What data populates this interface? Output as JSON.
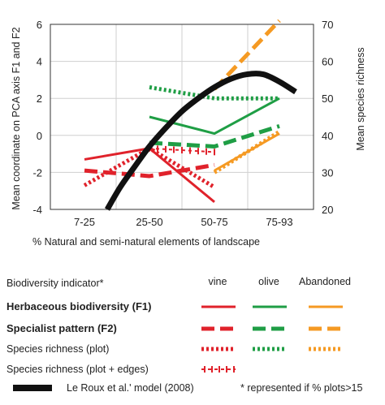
{
  "chart_data": {
    "type": "line",
    "categories": [
      "7-25",
      "25-50",
      "50-75",
      "75-93"
    ],
    "xlabel": "% Natural and semi-natural elements of landscape",
    "ylabel_left": "Mean coordinate on PCA axis F1 and F2",
    "ylabel_right": "Mean species richness",
    "ylim_left": [
      -4,
      6
    ],
    "ylim_right": [
      20,
      70
    ],
    "yticks_left": [
      "-4",
      "-2",
      "0",
      "2",
      "4",
      "6"
    ],
    "yticks_right": [
      "20",
      "30",
      "40",
      "50",
      "60",
      "70"
    ],
    "grid": true,
    "colors": {
      "vine": "#e0222b",
      "olive": "#1f9e45",
      "abandoned": "#f59a23",
      "model": "#111111"
    },
    "series": [
      {
        "name": "vine F1",
        "axis": "left",
        "style": "solid",
        "color": "vine",
        "x": [
          "7-25",
          "25-50",
          "50-75"
        ],
        "y": [
          -1.3,
          -0.7,
          -3.6
        ]
      },
      {
        "name": "vine F2",
        "axis": "left",
        "style": "dash",
        "color": "vine",
        "x": [
          "7-25",
          "25-50",
          "50-75"
        ],
        "y": [
          -1.9,
          -2.2,
          -1.6
        ]
      },
      {
        "name": "vine richness plot",
        "axis": "right",
        "style": "dot",
        "color": "vine",
        "x": [
          "7-25",
          "25-50",
          "50-75"
        ],
        "y": [
          26.5,
          36.5,
          26
        ]
      },
      {
        "name": "vine richness plot+edges",
        "axis": "right",
        "style": "cross",
        "color": "vine",
        "x": [
          "25-50",
          "50-75"
        ],
        "y": [
          36.5,
          35.5
        ]
      },
      {
        "name": "olive F1",
        "axis": "left",
        "style": "solid",
        "color": "olive",
        "x": [
          "25-50",
          "50-75",
          "75-93"
        ],
        "y": [
          1.0,
          0.1,
          2.0
        ]
      },
      {
        "name": "olive F2",
        "axis": "left",
        "style": "dash",
        "color": "olive",
        "x": [
          "25-50",
          "50-75",
          "75-93"
        ],
        "y": [
          -0.4,
          -0.6,
          0.5
        ]
      },
      {
        "name": "olive richness plot",
        "axis": "right",
        "style": "dot",
        "color": "olive",
        "x": [
          "25-50",
          "50-75",
          "75-93"
        ],
        "y": [
          53,
          50,
          50
        ]
      },
      {
        "name": "abandoned F1",
        "axis": "left",
        "style": "solid",
        "color": "abandoned",
        "x": [
          "50-75",
          "75-93"
        ],
        "y": [
          -1.9,
          0.1
        ]
      },
      {
        "name": "abandoned F2",
        "axis": "left",
        "style": "dash",
        "color": "abandoned",
        "x": [
          "50-75",
          "75-93"
        ],
        "y": [
          2.5,
          6.2
        ]
      },
      {
        "name": "abandoned richness plot",
        "axis": "right",
        "style": "dot",
        "color": "abandoned",
        "x": [
          "50-75",
          "75-93"
        ],
        "y": [
          30,
          41
        ]
      },
      {
        "name": "Le Roux et al. model",
        "axis": "left",
        "style": "thick",
        "color": "model",
        "curve": true,
        "x": [
          0.35,
          0.55,
          0.75,
          1.0,
          1.25,
          1.5,
          1.75,
          2.0,
          2.25,
          2.5,
          2.75,
          3.0,
          3.25
        ],
        "y": [
          -4.0,
          -2.8,
          -1.8,
          -0.6,
          0.4,
          1.3,
          2.0,
          2.6,
          3.05,
          3.3,
          3.3,
          2.9,
          2.35
        ]
      }
    ]
  },
  "legend": {
    "header": {
      "indicator": "Biodiversity indicator*",
      "vine": "vine",
      "olive": "olive",
      "abandoned": "Abandoned"
    },
    "rows": [
      {
        "label": "Herbaceous biodiversity (F1)",
        "style": "solid",
        "bold": true,
        "colors": [
          "vine",
          "olive",
          "abandoned"
        ]
      },
      {
        "label": "Specialist pattern (F2)",
        "style": "dash",
        "bold": true,
        "colors": [
          "vine",
          "olive",
          "abandoned"
        ]
      },
      {
        "label": "Species richness (plot)",
        "style": "dot",
        "bold": false,
        "colors": [
          "vine",
          "olive",
          "abandoned"
        ]
      },
      {
        "label": "Species richness (plot + edges)",
        "style": "cross",
        "bold": false,
        "colors": [
          "vine"
        ]
      }
    ],
    "model_label": "Le Roux et al.' model (2008)",
    "footnote": "* represented if % plots>15"
  }
}
